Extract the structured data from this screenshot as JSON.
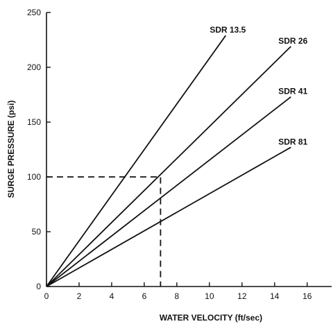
{
  "chart_data": {
    "type": "line",
    "xlabel": "WATER VELOCITY (ft/sec)",
    "ylabel": "SURGE PRESSURE (psi)",
    "xlim": [
      0,
      17.5
    ],
    "ylim": [
      0,
      250
    ],
    "xticks": [
      0,
      2,
      4,
      6,
      8,
      10,
      12,
      14,
      16
    ],
    "yticks": [
      0,
      50,
      100,
      150,
      200,
      250
    ],
    "grid": false,
    "series": [
      {
        "name": "SDR 13.5",
        "x": [
          0,
          11.0
        ],
        "y": [
          0,
          229
        ]
      },
      {
        "name": "SDR 26",
        "x": [
          0,
          15.0
        ],
        "y": [
          0,
          219
        ]
      },
      {
        "name": "SDR 41",
        "x": [
          0,
          15.0
        ],
        "y": [
          0,
          173
        ]
      },
      {
        "name": "SDR 81",
        "x": [
          0,
          15.0
        ],
        "y": [
          0,
          127
        ]
      }
    ],
    "annotations": [
      {
        "type": "dashed-reference",
        "x": 7,
        "y": 100
      }
    ]
  }
}
